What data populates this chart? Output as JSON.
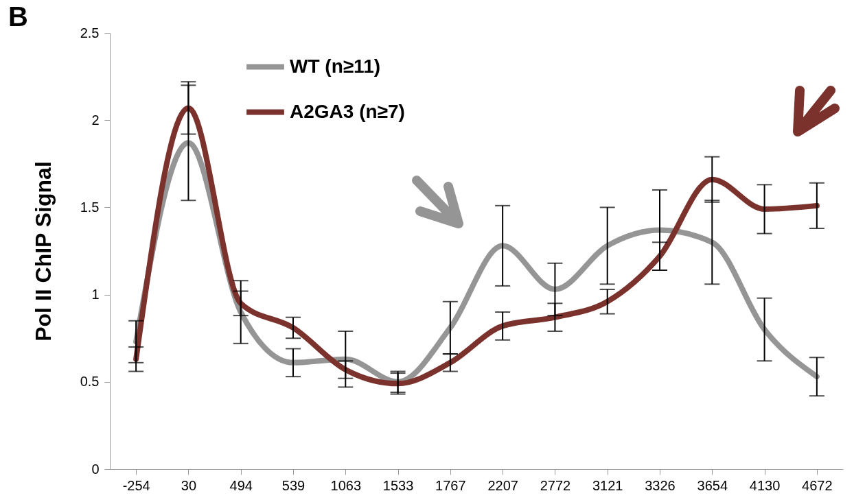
{
  "chart_data": {
    "type": "line",
    "ylabel": "Pol II ChIP Signal",
    "annotations": [
      "B"
    ],
    "categories": [
      "-254",
      "30",
      "494",
      "539",
      "1063",
      "1533",
      "1767",
      "2207",
      "2772",
      "3121",
      "3326",
      "3654",
      "4130",
      "4672"
    ],
    "series": [
      {
        "name": "WT  (n≥11)",
        "color": "#959595",
        "values": [
          0.73,
          1.87,
          0.9,
          0.61,
          0.63,
          0.5,
          0.81,
          1.28,
          1.03,
          1.28,
          1.37,
          1.3,
          0.8,
          0.53
        ],
        "errors": [
          0.12,
          0.33,
          0.18,
          0.08,
          0.16,
          0.06,
          0.15,
          0.23,
          0.15,
          0.22,
          0.23,
          0.24,
          0.18,
          0.11
        ]
      },
      {
        "name": "A2GA3 (n≥7)",
        "color": "#7b312c",
        "values": [
          0.63,
          2.07,
          0.95,
          0.81,
          0.57,
          0.49,
          0.61,
          0.82,
          0.87,
          0.96,
          1.22,
          1.66,
          1.49,
          1.51
        ],
        "errors": [
          0.07,
          0.15,
          0.07,
          0.06,
          0.05,
          0.06,
          0.05,
          0.08,
          0.08,
          0.07,
          0.08,
          0.13,
          0.14,
          0.13
        ]
      }
    ],
    "ylim": [
      0,
      2.5
    ],
    "yticks": [
      0,
      0.5,
      1,
      1.5,
      2,
      2.5
    ],
    "grid": false,
    "legend": "top left",
    "marker": "none",
    "line_style": "solid"
  }
}
